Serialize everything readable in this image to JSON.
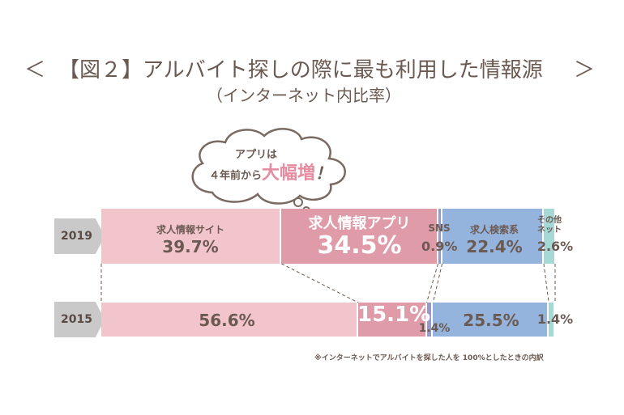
{
  "title": {
    "left_arrow": "＜",
    "text": "【図２】アルバイト探しの際に最も利用した情報源",
    "right_arrow": "＞",
    "subtitle": "（インターネット内比率）"
  },
  "callout": {
    "line1": "アプリは",
    "line2": "４年前から",
    "highlight": "大幅増",
    "exclaim": "！"
  },
  "note": "※インターネットでアルバイトを探した人を 100%としたときの内訳",
  "chart_data": {
    "type": "stacked-bar-horizontal",
    "categories": [
      "2019",
      "2015"
    ],
    "series": [
      {
        "name": "求人情報サイト",
        "color": "#f2c4cb",
        "values": [
          39.7,
          56.6
        ]
      },
      {
        "name": "求人情報アプリ",
        "color": "#e09ba9",
        "values": [
          34.5,
          15.1
        ]
      },
      {
        "name": "SNS",
        "color": "#9a97c9",
        "values": [
          0.9,
          1.4
        ]
      },
      {
        "name": "求人検索系",
        "color": "#94b4de",
        "values": [
          22.4,
          25.5
        ]
      },
      {
        "name": "その他ネット",
        "color": "#a6d9d6",
        "values": [
          2.6,
          1.4
        ]
      }
    ],
    "labels_2019": {
      "site": "求人情報サイト",
      "app": "求人情報アプリ",
      "sns": "SNS",
      "search": "求人検索系",
      "other": "その他\nネット"
    },
    "xlim": [
      0,
      100
    ]
  }
}
